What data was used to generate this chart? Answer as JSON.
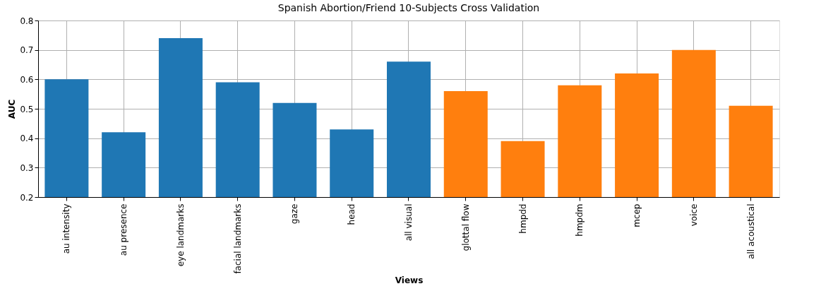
{
  "chart_data": {
    "type": "bar",
    "title": "Spanish Abortion/Friend 10-Subjects Cross Validation",
    "xlabel": "Views",
    "ylabel": "AUC",
    "categories": [
      "au intensity",
      "au presence",
      "eye landmarks",
      "facial landmarks",
      "gaze",
      "head",
      "all visual",
      "glottal flow",
      "hmpdd",
      "hmpdm",
      "mcep",
      "voice",
      "all acoustical"
    ],
    "values": [
      0.6,
      0.42,
      0.74,
      0.59,
      0.52,
      0.43,
      0.66,
      0.56,
      0.39,
      0.58,
      0.62,
      0.7,
      0.51
    ],
    "colors": [
      "#1f77b4",
      "#1f77b4",
      "#1f77b4",
      "#1f77b4",
      "#1f77b4",
      "#1f77b4",
      "#1f77b4",
      "#ff7f0e",
      "#ff7f0e",
      "#ff7f0e",
      "#ff7f0e",
      "#ff7f0e",
      "#ff7f0e"
    ],
    "ylim": [
      0.2,
      0.8
    ],
    "yticks": [
      0.2,
      0.3,
      0.4,
      0.5,
      0.6,
      0.7,
      0.8
    ],
    "grid": true
  }
}
